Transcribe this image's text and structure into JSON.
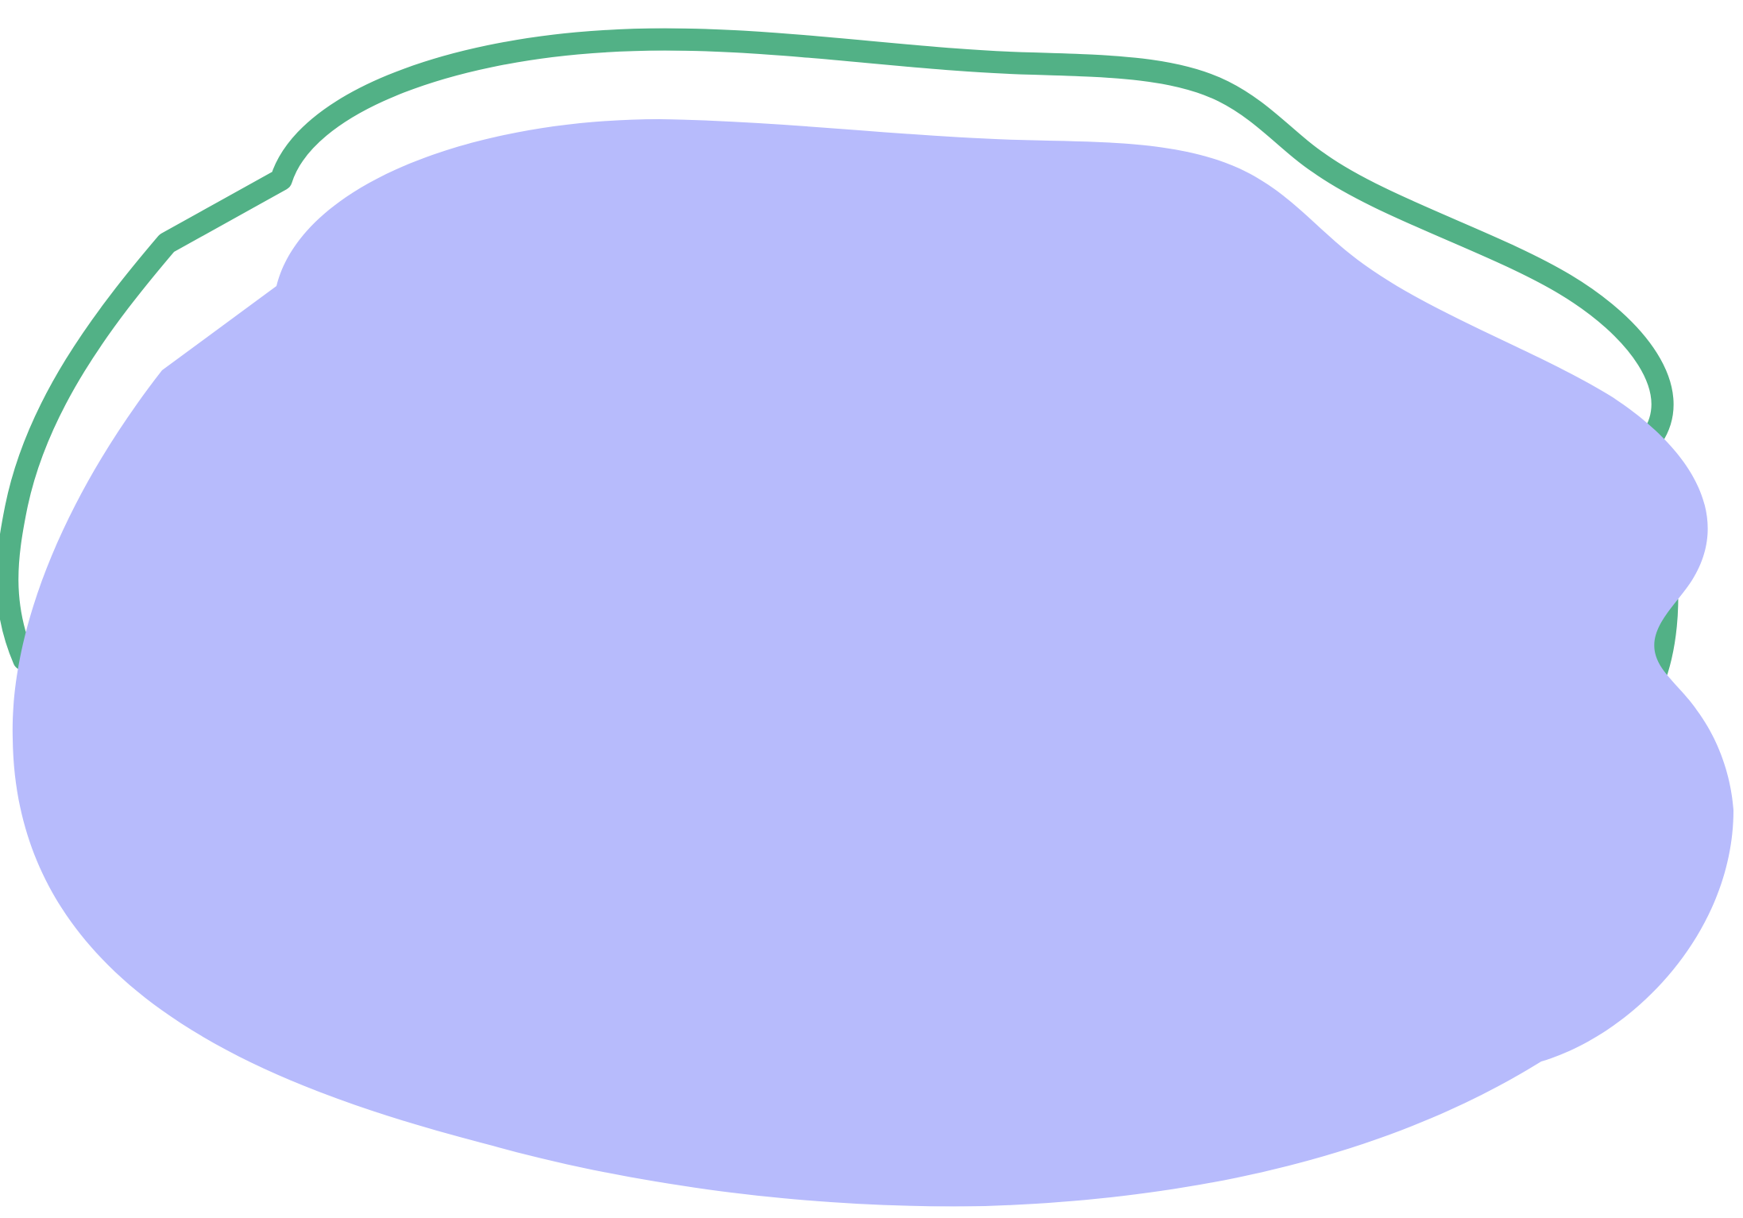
{
  "shapes": {
    "outline_blob": {
      "kind": "outline",
      "stroke_color": "#52b186",
      "fill_color": "none"
    },
    "filled_blob": {
      "kind": "filled",
      "fill_color": "#b7bbfc"
    }
  },
  "background_color": "#ffffff"
}
